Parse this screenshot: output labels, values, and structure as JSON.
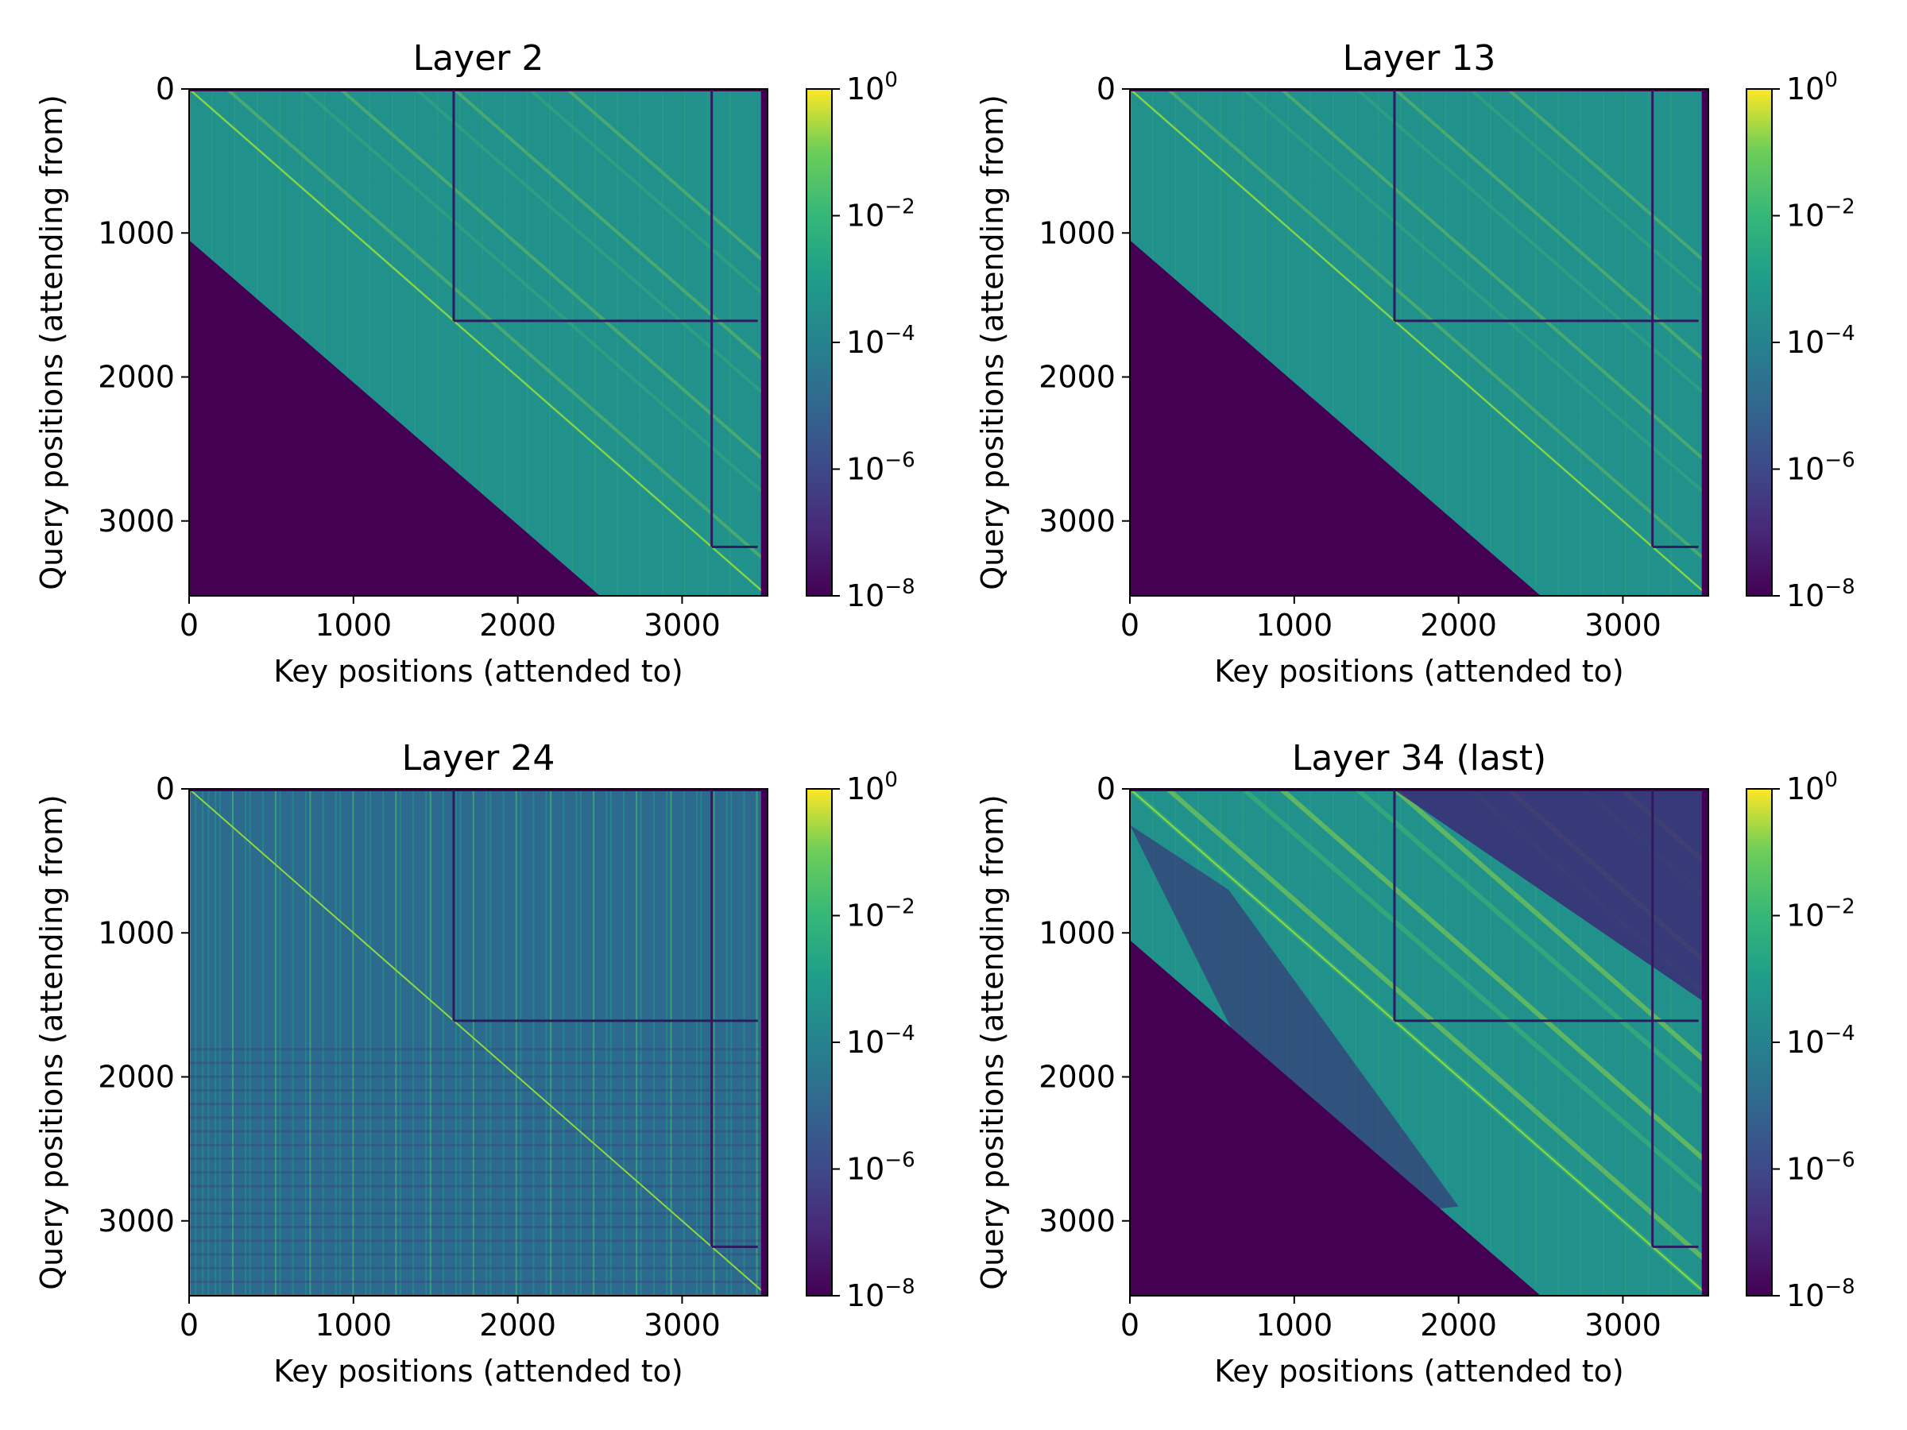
{
  "chart_data": [
    {
      "type": "heatmap",
      "title": "Layer 2",
      "xlabel": "Key positions (attended to)",
      "ylabel": "Query positions (attending from)",
      "xlim": [
        0,
        3520
      ],
      "ylim": [
        3520,
        0
      ],
      "xticks": [
        "0",
        "1000",
        "2000",
        "3000"
      ],
      "yticks": [
        "0",
        "1000",
        "2000",
        "3000"
      ],
      "colorbar": {
        "scale": "log",
        "range": [
          1e-08,
          1
        ],
        "ticks": [
          {
            "base": "10",
            "exp": "0"
          },
          {
            "base": "10",
            "exp": "−2"
          },
          {
            "base": "10",
            "exp": "−4"
          },
          {
            "base": "10",
            "exp": "−6"
          },
          {
            "base": "10",
            "exp": "−8"
          }
        ],
        "colormap": "viridis"
      },
      "masked_region": {
        "description": "lower-left triangle",
        "from": [
          0,
          1050
        ],
        "to": [
          2500,
          3520
        ]
      },
      "pattern": "broad diagonal bands",
      "block_boundaries": [
        1610,
        3180
      ]
    },
    {
      "type": "heatmap",
      "title": "Layer 13",
      "xlabel": "Key positions (attended to)",
      "ylabel": "Query positions (attending from)",
      "xlim": [
        0,
        3520
      ],
      "ylim": [
        3520,
        0
      ],
      "xticks": [
        "0",
        "1000",
        "2000",
        "3000"
      ],
      "yticks": [
        "0",
        "1000",
        "2000",
        "3000"
      ],
      "colorbar": {
        "scale": "log",
        "range": [
          1e-08,
          1
        ],
        "ticks": [
          {
            "base": "10",
            "exp": "0"
          },
          {
            "base": "10",
            "exp": "−2"
          },
          {
            "base": "10",
            "exp": "−4"
          },
          {
            "base": "10",
            "exp": "−6"
          },
          {
            "base": "10",
            "exp": "−8"
          }
        ],
        "colormap": "viridis"
      },
      "masked_region": {
        "description": "lower-left triangle",
        "from": [
          0,
          1050
        ],
        "to": [
          2500,
          3520
        ]
      },
      "pattern": "uniform green with faint diagonals",
      "block_boundaries": [
        1610,
        3180
      ]
    },
    {
      "type": "heatmap",
      "title": "Layer 24",
      "xlabel": "Key positions (attended to)",
      "ylabel": "Query positions (attending from)",
      "xlim": [
        0,
        3520
      ],
      "ylim": [
        3520,
        0
      ],
      "xticks": [
        "0",
        "1000",
        "2000",
        "3000"
      ],
      "yticks": [
        "0",
        "1000",
        "2000",
        "3000"
      ],
      "colorbar": {
        "scale": "log",
        "range": [
          1e-08,
          1
        ],
        "ticks": [
          {
            "base": "10",
            "exp": "0"
          },
          {
            "base": "10",
            "exp": "−2"
          },
          {
            "base": "10",
            "exp": "−4"
          },
          {
            "base": "10",
            "exp": "−6"
          },
          {
            "base": "10",
            "exp": "−8"
          }
        ],
        "colormap": "viridis"
      },
      "masked_region": null,
      "pattern": "vertical stripes, full matrix",
      "block_boundaries": [
        1610,
        3180
      ]
    },
    {
      "type": "heatmap",
      "title": "Layer 34 (last)",
      "xlabel": "Key positions (attended to)",
      "ylabel": "Query positions (attending from)",
      "xlim": [
        0,
        3520
      ],
      "ylim": [
        3520,
        0
      ],
      "xticks": [
        "0",
        "1000",
        "2000",
        "3000"
      ],
      "yticks": [
        "0",
        "1000",
        "2000",
        "3000"
      ],
      "colorbar": {
        "scale": "log",
        "range": [
          1e-08,
          1
        ],
        "ticks": [
          {
            "base": "10",
            "exp": "0"
          },
          {
            "base": "10",
            "exp": "−2"
          },
          {
            "base": "10",
            "exp": "−4"
          },
          {
            "base": "10",
            "exp": "−6"
          },
          {
            "base": "10",
            "exp": "−8"
          }
        ],
        "colormap": "viridis"
      },
      "masked_region": {
        "description": "lower-left triangle",
        "from": [
          0,
          1050
        ],
        "to": [
          2500,
          3520
        ]
      },
      "pattern": "strong diagonal bands, dark upper-right corner",
      "block_boundaries": [
        1610,
        3180
      ]
    }
  ],
  "colors": {
    "viridis_min": "#440154",
    "viridis_dark": "#3b2a75",
    "viridis_blue": "#2c6a8e",
    "viridis_teal": "#21918c",
    "viridis_green": "#3fb970",
    "viridis_lime": "#90d743",
    "viridis_max": "#fde725",
    "boundary_line": "#2e1a5e"
  }
}
